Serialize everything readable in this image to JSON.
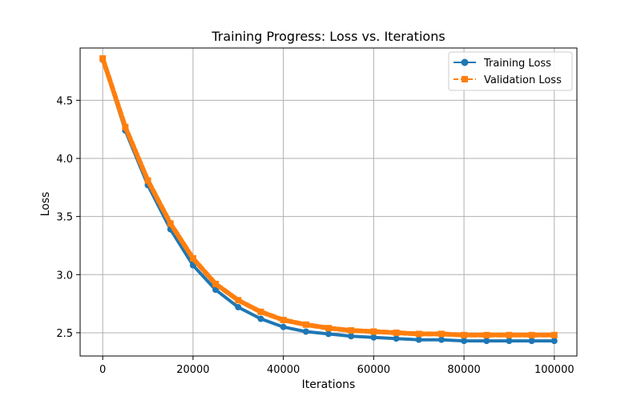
{
  "chart_data": {
    "type": "line",
    "title": "Training Progress: Loss vs. Iterations",
    "xlabel": "Iterations",
    "ylabel": "Loss",
    "xlim": [
      -5000,
      105000
    ],
    "ylim": [
      2.3,
      4.95
    ],
    "xticks": [
      0,
      20000,
      40000,
      60000,
      80000,
      100000
    ],
    "xtick_labels": [
      "0",
      "20000",
      "40000",
      "60000",
      "80000",
      "100000"
    ],
    "yticks": [
      2.5,
      3.0,
      3.5,
      4.0,
      4.5
    ],
    "ytick_labels": [
      "2.5",
      "3.0",
      "3.5",
      "4.0",
      "4.5"
    ],
    "grid": true,
    "legend_position": "top-right",
    "x": [
      0,
      5000,
      10000,
      15000,
      20000,
      25000,
      30000,
      35000,
      40000,
      45000,
      50000,
      55000,
      60000,
      65000,
      70000,
      75000,
      80000,
      85000,
      90000,
      95000,
      100000
    ],
    "series": [
      {
        "name": "Training Loss",
        "color": "#1f77b4",
        "marker": "circle",
        "line_style": "solid",
        "values": [
          4.85,
          4.24,
          3.77,
          3.39,
          3.08,
          2.87,
          2.72,
          2.62,
          2.55,
          2.51,
          2.49,
          2.47,
          2.46,
          2.45,
          2.44,
          2.44,
          2.43,
          2.43,
          2.43,
          2.43,
          2.43
        ]
      },
      {
        "name": "Validation Loss",
        "color": "#ff7f0e",
        "marker": "square",
        "line_style": "dashed",
        "values": [
          4.86,
          4.27,
          3.81,
          3.44,
          3.14,
          2.92,
          2.78,
          2.68,
          2.61,
          2.57,
          2.54,
          2.52,
          2.51,
          2.5,
          2.49,
          2.49,
          2.48,
          2.48,
          2.48,
          2.48,
          2.48
        ]
      }
    ]
  }
}
